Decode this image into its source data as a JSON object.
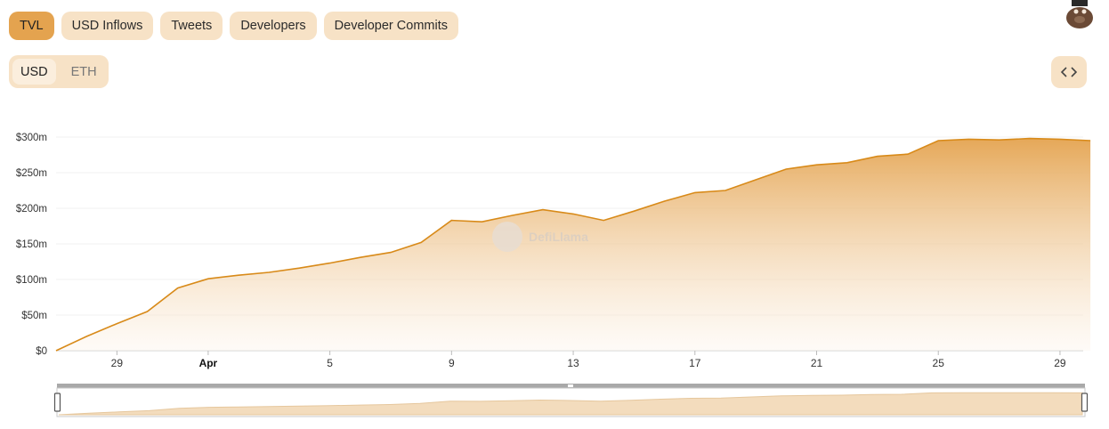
{
  "tabs": [
    {
      "label": "TVL",
      "active": true
    },
    {
      "label": "USD Inflows",
      "active": false
    },
    {
      "label": "Tweets",
      "active": false
    },
    {
      "label": "Developers",
      "active": false
    },
    {
      "label": "Developer Commits",
      "active": false
    }
  ],
  "currency_toggle": {
    "usd_label": "USD",
    "eth_label": "ETH",
    "selected": "USD"
  },
  "embed_icon": "code-brackets-icon",
  "watermark": "DefiLlama",
  "colors": {
    "accent": "#e4a34f",
    "line": "#d88a19",
    "tab_bg": "#f7e2c6"
  },
  "chart_data": {
    "type": "area",
    "title": "",
    "xlabel": "",
    "ylabel": "",
    "y_tick_labels": [
      "$0",
      "$50m",
      "$100m",
      "$150m",
      "$200m",
      "$250m",
      "$300m"
    ],
    "ylim": [
      0,
      300
    ],
    "y_unit": "$m",
    "x_tick_labels": [
      "29",
      "Apr",
      "5",
      "9",
      "13",
      "17",
      "21",
      "25",
      "29"
    ],
    "grid": true,
    "legend": "none",
    "series": [
      {
        "x": [
          "Mar 27",
          "Mar 28",
          "Mar 29",
          "Mar 30",
          "Mar 31",
          "Apr 1",
          "Apr 2",
          "Apr 3",
          "Apr 4",
          "Apr 5",
          "Apr 6",
          "Apr 7",
          "Apr 8",
          "Apr 9",
          "Apr 10",
          "Apr 11",
          "Apr 12",
          "Apr 13",
          "Apr 14",
          "Apr 15",
          "Apr 16",
          "Apr 17",
          "Apr 18",
          "Apr 19",
          "Apr 20",
          "Apr 21",
          "Apr 22",
          "Apr 23",
          "Apr 24",
          "Apr 25",
          "Apr 26",
          "Apr 27",
          "Apr 28",
          "Apr 29",
          "Apr 30"
        ],
        "values": [
          0,
          20,
          38,
          55,
          88,
          101,
          106,
          110,
          116,
          123,
          131,
          138,
          152,
          183,
          181,
          190,
          198,
          192,
          183,
          196,
          210,
          222,
          225,
          240,
          255,
          261,
          264,
          273,
          276,
          295,
          297,
          296,
          298,
          297,
          295
        ]
      }
    ],
    "brush_range": [
      0,
      1
    ]
  }
}
